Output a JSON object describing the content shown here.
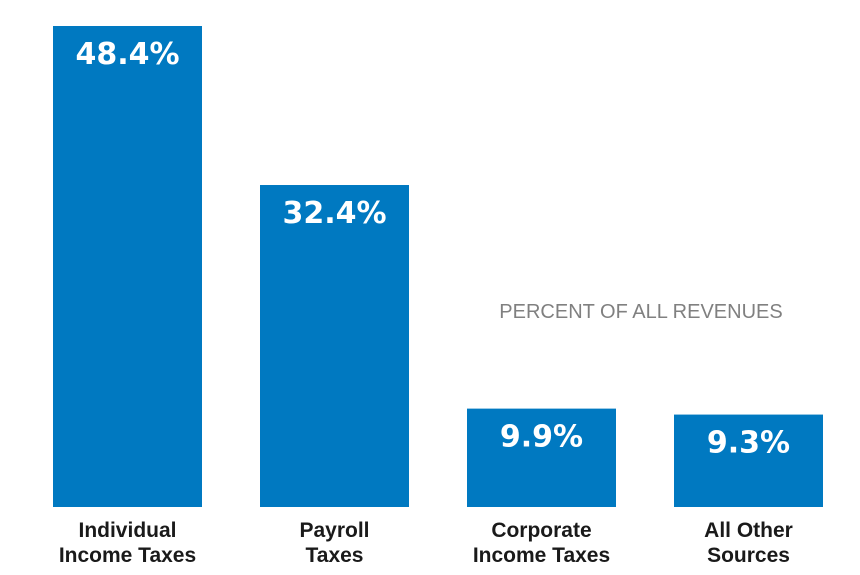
{
  "chart_data": {
    "type": "bar",
    "title": "PERCENT OF ALL REVENUES",
    "categories": [
      [
        "Individual",
        "Income Taxes"
      ],
      [
        "Payroll",
        "Taxes"
      ],
      [
        "Corporate",
        "Income Taxes"
      ],
      [
        "All Other",
        "Sources"
      ]
    ],
    "values": [
      48.4,
      32.4,
      9.9,
      9.3
    ],
    "value_labels": [
      "48.4%",
      "32.4%",
      "9.9%",
      "9.3%"
    ],
    "xlabel": "",
    "ylabel": "",
    "ylim": [
      0,
      48.4
    ],
    "grid": false,
    "bar_color": "#0079c1",
    "value_label_color": "#ffffff",
    "title_color": "#808080",
    "category_label_color": "#1a1a1a"
  }
}
